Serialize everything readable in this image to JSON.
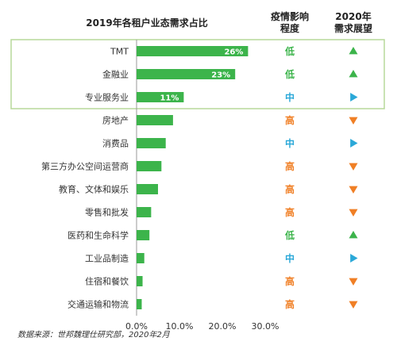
{
  "chart_data": {
    "type": "bar",
    "orientation": "horizontal",
    "title": "2019年各租户业态需求占比",
    "categories": [
      "TMT",
      "金融业",
      "专业服务业",
      "房地产",
      "消费品",
      "第三方办公空间运营商",
      "教育、文体和娱乐",
      "零售和批发",
      "医药和生命科学",
      "工业品制造",
      "住宿和餐饮",
      "交通运输和物流"
    ],
    "values": [
      26,
      23,
      11,
      8.5,
      6.8,
      5.8,
      5.0,
      3.4,
      3.0,
      1.8,
      1.4,
      1.2
    ],
    "data_labels": [
      "26%",
      "23%",
      "11%",
      "",
      "",
      "",
      "",
      "",
      "",
      "",
      "",
      ""
    ],
    "xlim": [
      0,
      30
    ],
    "x_ticks": [
      0,
      10,
      20,
      30
    ],
    "x_tick_labels": [
      "0.0%",
      "10.0%",
      "20.0%",
      "30.0%"
    ],
    "xlabel": "",
    "ylabel": "",
    "grid": false,
    "bar_color": "#3cb44b",
    "highlight_box_color": "#b7d99a",
    "highlighted_categories": [
      "TMT",
      "金融业",
      "专业服务业"
    ],
    "impact_header": [
      "疫情影响",
      "程度"
    ],
    "impact_levels": [
      "低",
      "低",
      "中",
      "高",
      "中",
      "高",
      "高",
      "高",
      "低",
      "中",
      "高",
      "高"
    ],
    "outlook_header": [
      "2020年",
      "需求展望"
    ],
    "outlook_icons": [
      "up",
      "up",
      "right",
      "down",
      "right",
      "down",
      "down",
      "down",
      "up",
      "right",
      "down",
      "down"
    ],
    "level_colors": {
      "低": "#3cb44b",
      "中": "#2aa8d8",
      "高": "#f07f25"
    },
    "icon_colors": {
      "up": "#3cb44b",
      "right": "#2aa8d8",
      "down": "#f07f25"
    }
  },
  "footnote": "数据来源：世邦魏理仕研究部，2020年2月"
}
